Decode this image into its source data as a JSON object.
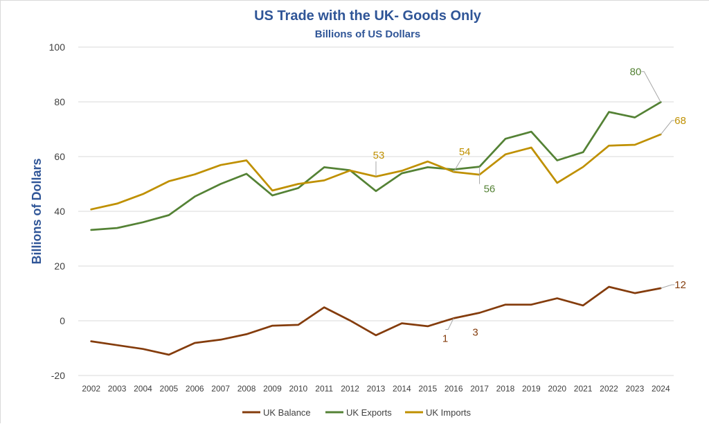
{
  "chart_data": {
    "type": "line",
    "title": "US Trade with the UK- Goods Only",
    "subtitle": "Billions of US Dollars",
    "xlabel": "",
    "ylabel": "Billions of Dollars",
    "ylim": [
      -20,
      100
    ],
    "yticks": [
      -20,
      0,
      20,
      40,
      60,
      80,
      100
    ],
    "grid": true,
    "legend_position": "bottom",
    "x": [
      "2002",
      "2003",
      "2004",
      "2005",
      "2006",
      "2007",
      "2008",
      "2009",
      "2010",
      "2011",
      "2012",
      "2013",
      "2014",
      "2015",
      "2016",
      "2017",
      "2018",
      "2019",
      "2020",
      "2021",
      "2022",
      "2023",
      "2024"
    ],
    "series": [
      {
        "name": "UK Balance",
        "color": "#843c0c",
        "values": [
          -7.5,
          -8.9,
          -10.3,
          -12.4,
          -8.1,
          -6.9,
          -4.9,
          -1.8,
          -1.5,
          4.9,
          0.1,
          -5.3,
          -0.9,
          -2.0,
          0.9,
          2.9,
          5.9,
          5.9,
          8.2,
          5.6,
          12.4,
          10.1,
          11.9
        ]
      },
      {
        "name": "UK Exports",
        "color": "#548235",
        "values": [
          33.2,
          33.9,
          36.0,
          38.6,
          45.4,
          50.0,
          53.7,
          45.8,
          48.5,
          56.1,
          55.0,
          47.4,
          53.9,
          56.1,
          55.3,
          56.3,
          66.5,
          69.1,
          58.6,
          61.6,
          76.3,
          74.3,
          79.9
        ]
      },
      {
        "name": "UK Imports",
        "color": "#bf9000",
        "values": [
          40.7,
          42.8,
          46.3,
          51.0,
          53.5,
          56.9,
          58.6,
          47.6,
          50.0,
          51.3,
          54.9,
          52.7,
          54.8,
          58.2,
          54.4,
          53.4,
          60.8,
          63.3,
          50.4,
          56.2,
          64.0,
          64.3,
          68.1
        ]
      }
    ],
    "annotations": [
      {
        "series": 1,
        "index": 22,
        "text": "80"
      },
      {
        "series": 2,
        "index": 22,
        "text": "68"
      },
      {
        "series": 0,
        "index": 22,
        "text": "12"
      },
      {
        "series": 2,
        "index": 11,
        "text": "53"
      },
      {
        "series": 2,
        "index": 14,
        "text": "54"
      },
      {
        "series": 1,
        "index": 15,
        "text": "56"
      },
      {
        "series": 0,
        "index": 14,
        "text": "1"
      },
      {
        "series": 0,
        "index": 15,
        "text": "3"
      }
    ]
  }
}
